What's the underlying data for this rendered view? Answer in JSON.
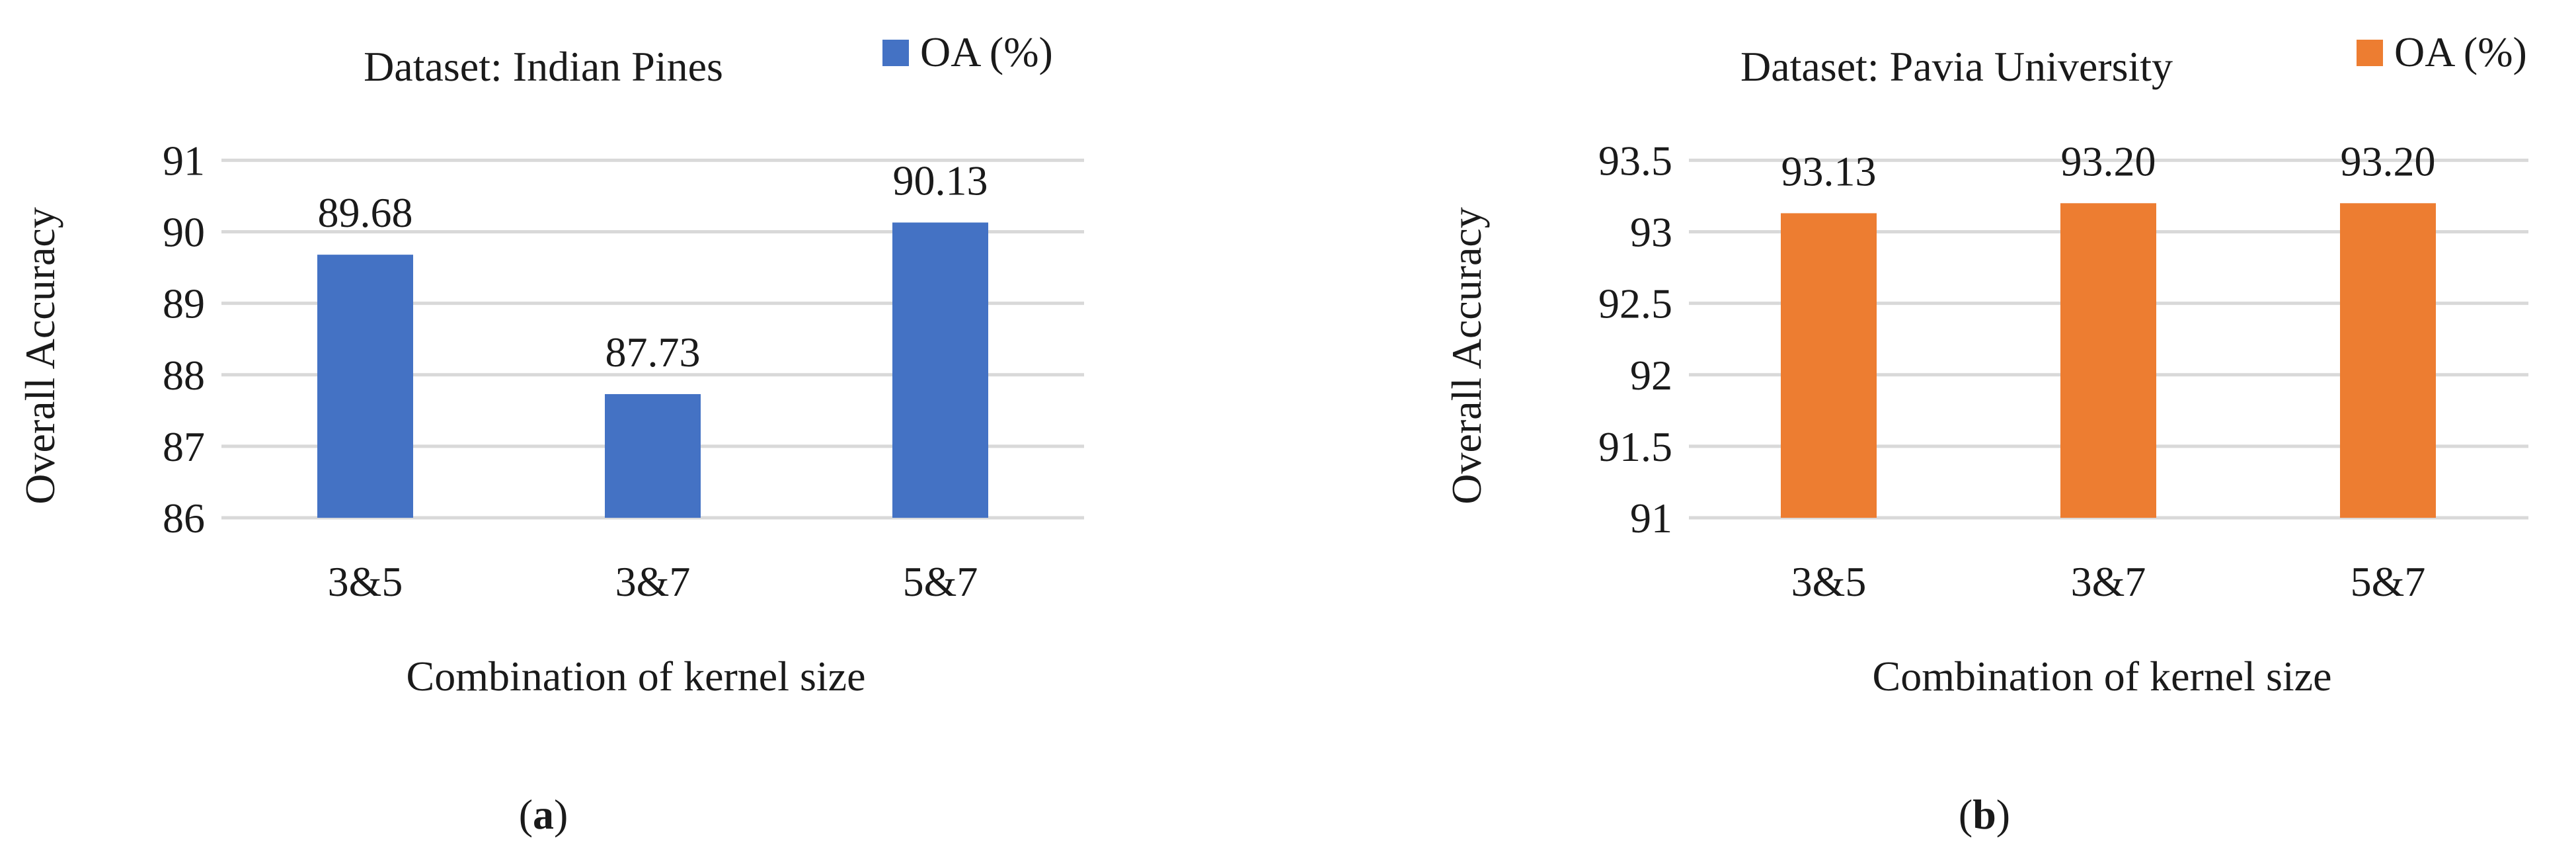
{
  "chart_data": [
    {
      "type": "bar",
      "title": "Dataset: Indian Pines",
      "xlabel": "Combination of kernel size",
      "ylabel": "Overall Accuracy",
      "categories": [
        "3&5",
        "3&7",
        "5&7"
      ],
      "series": [
        {
          "name": "OA (%)",
          "values": [
            89.68,
            87.73,
            90.13
          ],
          "color": "#4472C4"
        }
      ],
      "value_labels": [
        "89.68",
        "87.73",
        "90.13"
      ],
      "yticks": [
        "86",
        "87",
        "88",
        "89",
        "90",
        "91"
      ],
      "ylim": [
        86,
        91.3
      ],
      "grid": true,
      "legend_position": "top-right",
      "panel_label": "a"
    },
    {
      "type": "bar",
      "title": "Dataset: Pavia University",
      "xlabel": "Combination of kernel size",
      "ylabel": "Overall Accuracy",
      "categories": [
        "3&5",
        "3&7",
        "5&7"
      ],
      "series": [
        {
          "name": "OA (%)",
          "values": [
            93.13,
            93.2,
            93.2
          ],
          "color": "#ED7D31"
        }
      ],
      "value_labels": [
        "93.13",
        "93.20",
        "93.20"
      ],
      "yticks": [
        "91",
        "91.5",
        "92",
        "92.5",
        "93",
        "93.5"
      ],
      "ylim": [
        91,
        93.65
      ],
      "grid": true,
      "legend_position": "top-right",
      "panel_label": "b"
    }
  ]
}
